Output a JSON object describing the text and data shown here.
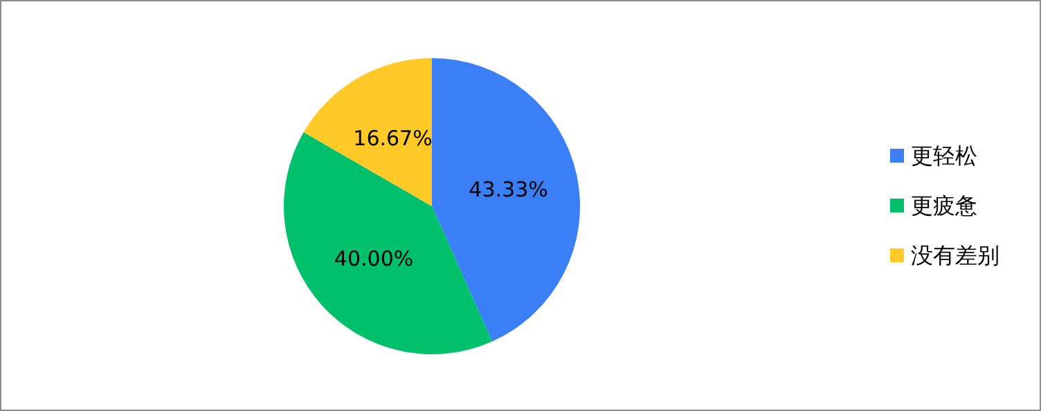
{
  "chart_data": {
    "type": "pie",
    "categories": [
      "更轻松",
      "更疲惫",
      "没有差别"
    ],
    "values": [
      43.33,
      40.0,
      16.67
    ],
    "value_labels": [
      "43.33%",
      "40.00%",
      "16.67%"
    ],
    "colors": [
      "#3a7ff6",
      "#00c06b",
      "#ffca28"
    ],
    "legend": "right"
  }
}
